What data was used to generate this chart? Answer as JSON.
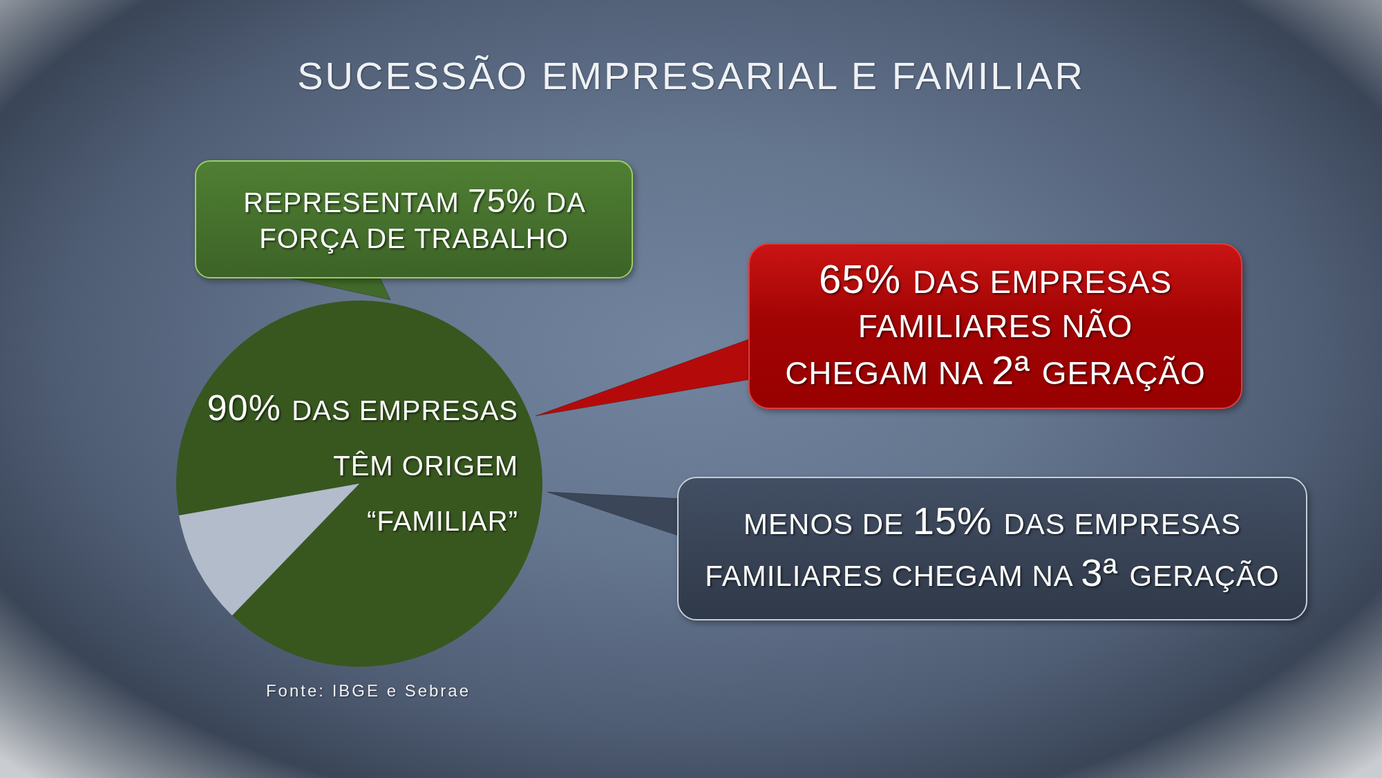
{
  "chart_data": {
    "type": "pie",
    "title": "SUCESSÃO EMPRESARIAL E FAMILIAR",
    "categories": [
      "90% DAS EMPRESAS TÊM ORIGEM “FAMILIAR”",
      null
    ],
    "values": [
      90,
      10
    ],
    "colors": [
      "#38571f",
      "#b3bccb"
    ],
    "annotations": [
      "REPRESENTAM 75% DA FORÇA DE TRABALHO",
      "65% DAS EMPRESAS FAMILIARES NÃO CHEGAM NA 2ª GERAÇÃO",
      "MENOS DE 15% DAS EMPRESAS FAMILIARES CHEGAM NA 3ª GERAÇÃO",
      "Fonte: IBGE e Sebrae"
    ]
  }
}
